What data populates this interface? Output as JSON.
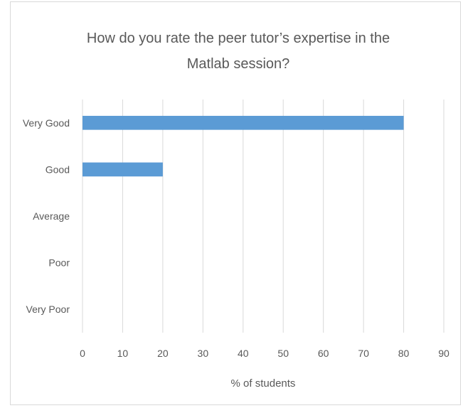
{
  "chart_data": {
    "type": "bar",
    "orientation": "horizontal",
    "title_lines": [
      "How do you rate the peer tutor’s expertise in the",
      "Matlab session?"
    ],
    "categories": [
      "Very Good",
      "Good",
      "Average",
      "Poor",
      "Very Poor"
    ],
    "values": [
      80,
      20,
      0,
      0,
      0
    ],
    "xlabel": "% of students",
    "ylabel": "",
    "xlim": [
      0,
      90
    ],
    "xticks": [
      "0",
      "10",
      "20",
      "30",
      "40",
      "50",
      "60",
      "70",
      "80",
      "90"
    ],
    "grid": "vertical",
    "legend": "none",
    "bar_color": "#5b9bd5",
    "grid_color": "#d9d9d9",
    "text_color": "#595959"
  }
}
